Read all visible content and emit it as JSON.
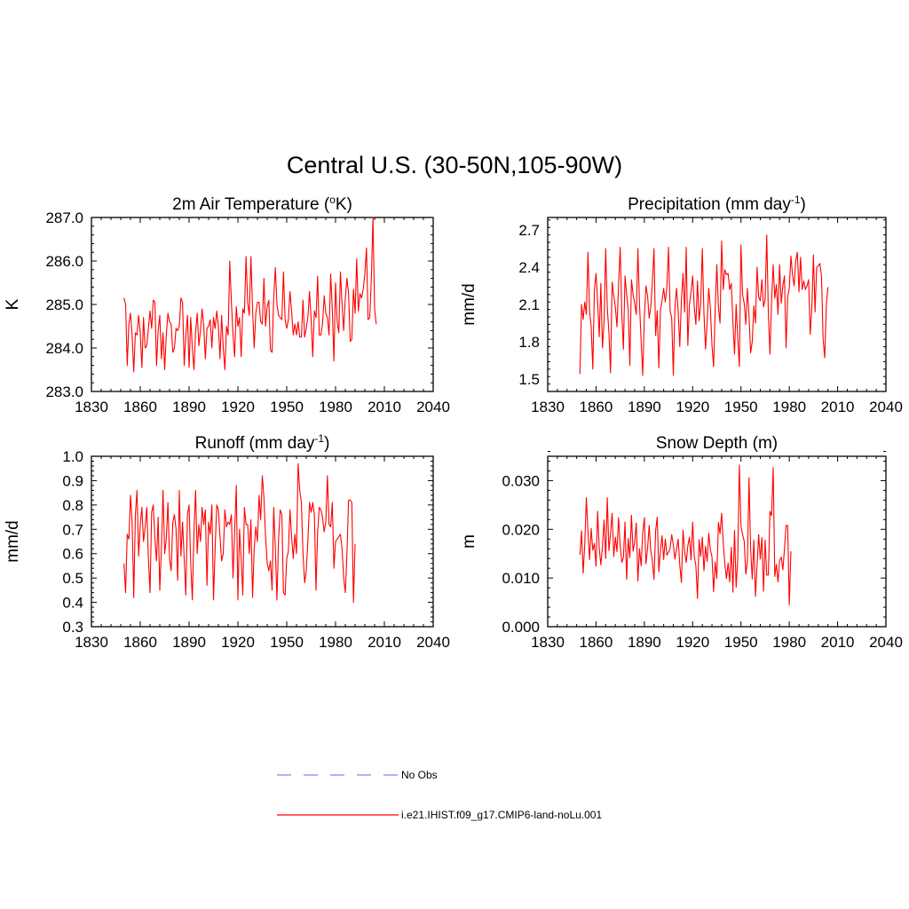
{
  "title": "Central U.S. (30-50N,105-90W)",
  "colors": {
    "model": "#ff0000",
    "obs": "#9999ff",
    "axis": "#000000"
  },
  "legend": [
    {
      "label": "No Obs",
      "style": "dashed",
      "color": "#9999ff"
    },
    {
      "label": "i.e21.IHIST.f09_g17.CMIP6-land-noLu.001",
      "style": "solid",
      "color": "#ff0000"
    }
  ],
  "chart_data": [
    {
      "type": "line",
      "title": "2m Air Temperature (",
      "title_sup": "o",
      "title_suffix": "K)",
      "ylabel": "K",
      "xlim": [
        1830,
        2040
      ],
      "ylim": [
        283.0,
        287.0
      ],
      "xticks": [
        1830,
        1860,
        1890,
        1920,
        1950,
        1980,
        2010,
        2040
      ],
      "yticks": [
        283.0,
        284.0,
        285.0,
        286.0,
        287.0
      ],
      "ytick_labels": [
        "283.0",
        "284.0",
        "285.0",
        "286.0",
        "287.0"
      ],
      "x_start": 1850,
      "series": [
        {
          "values": [
            285.15,
            285.0,
            283.6,
            284.55,
            284.8,
            284.3,
            283.45,
            284.35,
            284.3,
            284.75,
            284.35,
            283.55,
            284.7,
            284.0,
            284.05,
            284.45,
            284.85,
            284.45,
            285.1,
            285.05,
            283.6,
            284.4,
            284.75,
            283.75,
            284.35,
            283.5,
            284.3,
            284.8,
            284.6,
            284.55,
            283.9,
            284.0,
            284.45,
            284.4,
            284.5,
            285.15,
            285.05,
            283.6,
            284.3,
            284.75,
            283.55,
            284.7,
            284.0,
            283.5,
            284.35,
            284.8,
            284.05,
            284.4,
            284.9,
            284.5,
            283.75,
            284.45,
            284.5,
            284.65,
            284.0,
            284.7,
            284.45,
            284.85,
            284.5,
            283.75,
            284.75,
            284.0,
            283.5,
            284.5,
            284.3,
            286.0,
            285.05,
            284.3,
            283.8,
            284.95,
            284.5,
            284.7,
            283.8,
            284.9,
            284.8,
            286.1,
            285.05,
            284.75,
            286.1,
            284.9,
            284.0,
            284.8,
            285.05,
            285.05,
            284.6,
            284.55,
            285.6,
            284.5,
            284.95,
            285.1,
            283.95,
            283.9,
            285.15,
            285.85,
            285.0,
            284.75,
            284.7,
            284.65,
            285.75,
            284.65,
            284.45,
            284.65,
            285.3,
            284.85,
            284.3,
            284.55,
            284.3,
            284.6,
            284.25,
            284.25,
            285.1,
            284.25,
            284.45,
            284.7,
            285.3,
            284.65,
            283.8,
            284.85,
            284.7,
            285.65,
            284.3,
            284.3,
            284.55,
            285.2,
            284.8,
            284.7,
            284.3,
            285.7,
            284.9,
            283.7,
            285.5,
            284.6,
            284.35,
            285.75,
            285.0,
            284.4,
            285.15,
            285.6,
            285.25,
            284.15,
            284.2,
            285.35,
            284.8,
            286.05,
            284.85,
            285.25,
            285.15,
            285.35,
            285.7,
            286.3,
            284.65,
            284.7,
            285.6,
            287.0,
            284.9,
            284.55
          ]
        }
      ]
    },
    {
      "type": "line",
      "title": "Precipitation (mm day",
      "title_sup": "-1",
      "title_suffix": ")",
      "ylabel": "mm/d",
      "xlim": [
        1830,
        2040
      ],
      "ylim": [
        1.4,
        2.8
      ],
      "xticks": [
        1830,
        1860,
        1890,
        1920,
        1950,
        1980,
        2010,
        2040
      ],
      "yticks": [
        1.5,
        1.8,
        2.1,
        2.4,
        2.7
      ],
      "ytick_labels": [
        "1.5",
        "1.8",
        "2.1",
        "2.4",
        "2.7"
      ],
      "x_start": 1850,
      "series": [
        {
          "values": [
            1.54,
            2.1,
            1.98,
            2.12,
            2.02,
            2.52,
            2.05,
            1.92,
            1.58,
            2.22,
            2.35,
            2.12,
            1.84,
            2.27,
            1.75,
            1.96,
            2.55,
            2.07,
            1.88,
            1.55,
            2.28,
            2.17,
            2.08,
            1.92,
            2.26,
            2.56,
            2.03,
            1.74,
            2.33,
            2.18,
            2.06,
            1.61,
            2.3,
            2.18,
            2.11,
            2.02,
            2.55,
            2.1,
            1.81,
            1.53,
            2.0,
            2.25,
            2.17,
            1.99,
            2.08,
            2.28,
            2.55,
            1.85,
            2.05,
            1.59,
            2.05,
            2.13,
            2.23,
            2.12,
            2.24,
            2.56,
            2.05,
            1.99,
            1.53,
            2.08,
            2.23,
            2.05,
            1.76,
            2.13,
            2.35,
            2.04,
            2.56,
            1.77,
            2.1,
            2.2,
            2.33,
            2.08,
            1.94,
            2.29,
            1.97,
            2.11,
            2.55,
            2.03,
            1.74,
            1.96,
            2.23,
            2.07,
            1.77,
            1.6,
            2.06,
            2.42,
            2.08,
            1.95,
            2.61,
            2.22,
            2.38,
            2.34,
            2.35,
            2.22,
            2.27,
            1.96,
            1.7,
            2.1,
            1.83,
            1.6,
            2.58,
            2.18,
            2.11,
            1.94,
            2.23,
            2.01,
            1.71,
            1.8,
            2.09,
            1.95,
            2.4,
            2.16,
            2.13,
            2.3,
            2.08,
            2.14,
            2.66,
            2.03,
            1.7,
            2.13,
            2.42,
            2.15,
            2.26,
            2.02,
            2.42,
            2.11,
            2.25,
            2.33,
            1.75,
            2.16,
            2.23,
            2.49,
            2.34,
            2.25,
            2.45,
            2.52,
            2.2,
            2.48,
            2.22,
            2.29,
            2.22,
            2.25,
            2.3,
            1.86,
            2.07,
            2.5,
            2.04,
            2.4,
            2.41,
            2.43,
            2.33,
            1.82,
            1.67,
            2.09,
            2.24
          ]
        }
      ]
    },
    {
      "type": "line",
      "title": "Runoff (mm day",
      "title_sup": "-1",
      "title_suffix": ")",
      "ylabel": "mm/d",
      "xlim": [
        1830,
        2040
      ],
      "ylim": [
        0.3,
        1.0
      ],
      "xticks": [
        1830,
        1860,
        1890,
        1920,
        1950,
        1980,
        2010,
        2040
      ],
      "yticks": [
        0.3,
        0.4,
        0.5,
        0.6,
        0.7,
        0.8,
        0.9,
        1.0
      ],
      "ytick_labels": [
        "0.3",
        "0.4",
        "0.5",
        "0.6",
        "0.7",
        "0.8",
        "0.9",
        "1.0"
      ],
      "x_start": 1850,
      "series": [
        {
          "values": [
            0.56,
            0.44,
            0.68,
            0.66,
            0.84,
            0.73,
            0.42,
            0.76,
            0.86,
            0.59,
            0.72,
            0.79,
            0.65,
            0.71,
            0.79,
            0.58,
            0.44,
            0.77,
            0.8,
            0.66,
            0.57,
            0.75,
            0.45,
            0.62,
            0.86,
            0.6,
            0.66,
            0.81,
            0.58,
            0.53,
            0.73,
            0.76,
            0.7,
            0.49,
            0.86,
            0.59,
            0.73,
            0.58,
            0.43,
            0.76,
            0.8,
            0.56,
            0.41,
            0.69,
            0.86,
            0.6,
            0.72,
            0.65,
            0.79,
            0.72,
            0.78,
            0.47,
            0.73,
            0.68,
            0.8,
            0.41,
            0.62,
            0.8,
            0.78,
            0.67,
            0.57,
            0.6,
            0.78,
            0.71,
            0.73,
            0.72,
            0.76,
            0.5,
            0.69,
            0.88,
            0.41,
            0.7,
            0.58,
            0.43,
            0.79,
            0.72,
            0.72,
            0.6,
            0.74,
            0.42,
            0.62,
            0.71,
            0.65,
            0.84,
            0.74,
            0.92,
            0.83,
            0.67,
            0.56,
            0.53,
            0.57,
            0.45,
            0.79,
            0.62,
            0.41,
            0.66,
            0.78,
            0.76,
            0.44,
            0.43,
            0.58,
            0.61,
            0.78,
            0.67,
            0.58,
            0.68,
            0.6,
            0.97,
            0.86,
            0.81,
            0.6,
            0.48,
            0.53,
            0.65,
            0.81,
            0.77,
            0.81,
            0.76,
            0.45,
            0.69,
            0.79,
            0.78,
            0.75,
            0.69,
            0.73,
            0.92,
            0.72,
            0.71,
            0.81,
            0.54,
            0.65,
            0.66,
            0.67,
            0.68,
            0.62,
            0.5,
            0.44,
            0.6,
            0.82,
            0.82,
            0.81,
            0.4,
            0.64
          ]
        }
      ]
    },
    {
      "type": "line",
      "title": "Snow Depth (m)",
      "title_sup": "",
      "title_suffix": "",
      "ylabel": "m",
      "xlim": [
        1830,
        2040
      ],
      "ylim": [
        0.0,
        0.035
      ],
      "xticks": [
        1830,
        1860,
        1890,
        1920,
        1950,
        1980,
        2010,
        2040
      ],
      "yticks": [
        0.0,
        0.01,
        0.02,
        0.03
      ],
      "ytick_labels": [
        "0.000",
        "0.010",
        "0.020",
        "0.030"
      ],
      "x_start": 1850,
      "series": [
        {
          "values": [
            0.0148,
            0.0197,
            0.011,
            0.0168,
            0.0265,
            0.0195,
            0.0138,
            0.0202,
            0.0157,
            0.0171,
            0.0124,
            0.0237,
            0.0161,
            0.0127,
            0.0165,
            0.0219,
            0.014,
            0.0265,
            0.0156,
            0.0191,
            0.0233,
            0.0144,
            0.0184,
            0.0154,
            0.0224,
            0.0166,
            0.0132,
            0.0142,
            0.0215,
            0.0097,
            0.0181,
            0.0142,
            0.0229,
            0.0155,
            0.0174,
            0.0213,
            0.0094,
            0.016,
            0.0125,
            0.0192,
            0.0224,
            0.0129,
            0.0161,
            0.0208,
            0.0156,
            0.0135,
            0.0097,
            0.0197,
            0.0225,
            0.0113,
            0.0156,
            0.0187,
            0.0138,
            0.018,
            0.0147,
            0.0153,
            0.0161,
            0.0189,
            0.0168,
            0.0139,
            0.016,
            0.018,
            0.0127,
            0.0091,
            0.0198,
            0.0155,
            0.0132,
            0.0166,
            0.0184,
            0.0137,
            0.0215,
            0.0144,
            0.0126,
            0.0058,
            0.0179,
            0.0144,
            0.0184,
            0.0115,
            0.0165,
            0.0134,
            0.0192,
            0.0158,
            0.0144,
            0.0072,
            0.0133,
            0.0099,
            0.0214,
            0.0191,
            0.0233,
            0.0172,
            0.0128,
            0.0099,
            0.0131,
            0.0092,
            0.0163,
            0.0071,
            0.0198,
            0.0081,
            0.0139,
            0.0332,
            0.0207,
            0.0189,
            0.0176,
            0.0108,
            0.0134,
            0.0306,
            0.0159,
            0.0098,
            0.0178,
            0.0062,
            0.0127,
            0.0189,
            0.0139,
            0.0183,
            0.0073,
            0.0178,
            0.0106,
            0.0106,
            0.0237,
            0.0228,
            0.0327,
            0.0103,
            0.0128,
            0.0092,
            0.0136,
            0.0143,
            0.0117,
            0.0159,
            0.0208,
            0.0208,
            0.0045,
            0.0155
          ]
        }
      ]
    }
  ]
}
